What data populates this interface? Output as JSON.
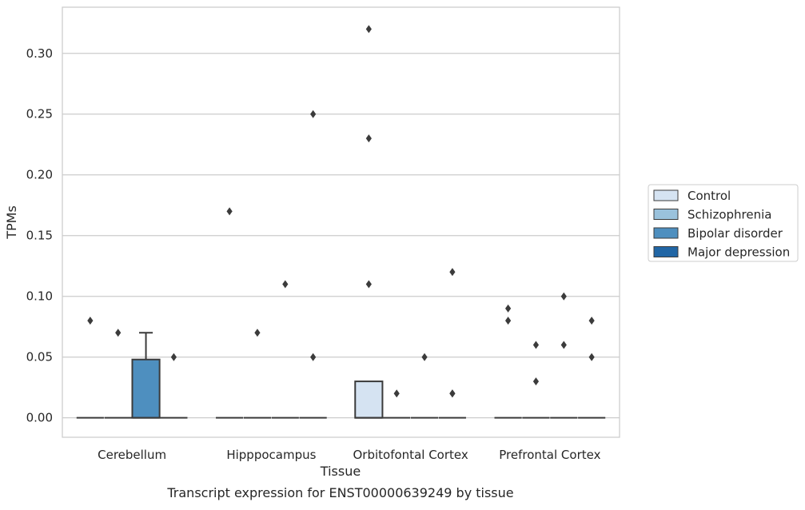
{
  "chart_data": {
    "type": "box",
    "title": "Transcript expression for ENST00000639249 by tissue",
    "xlabel": "Tissue",
    "ylabel": "TPMs",
    "ylim": [
      -0.016,
      0.338
    ],
    "yticks": [
      0.0,
      0.05,
      0.1,
      0.15,
      0.2,
      0.25,
      0.3
    ],
    "ytick_labels": [
      "0.00",
      "0.05",
      "0.10",
      "0.15",
      "0.20",
      "0.25",
      "0.30"
    ],
    "grid": "horizontal",
    "legend_position": "right",
    "categories": [
      "Cerebellum",
      "Hipppocampus",
      "Orbitofontal Cortex",
      "Prefrontal Cortex"
    ],
    "series": [
      {
        "name": "Control",
        "color": "#d5e3f2",
        "boxes": [
          {
            "q1": 0.0,
            "median": 0.0,
            "q3": 0.0,
            "whisker_low": 0.0,
            "whisker_high": 0.0,
            "outliers": [
              0.08
            ]
          },
          {
            "q1": 0.0,
            "median": 0.0,
            "q3": 0.0,
            "whisker_low": 0.0,
            "whisker_high": 0.0,
            "outliers": [
              0.17
            ]
          },
          {
            "q1": 0.0,
            "median": 0.0,
            "q3": 0.03,
            "whisker_low": 0.0,
            "whisker_high": 0.03,
            "outliers": [
              0.32,
              0.23,
              0.11
            ]
          },
          {
            "q1": 0.0,
            "median": 0.0,
            "q3": 0.0,
            "whisker_low": 0.0,
            "whisker_high": 0.0,
            "outliers": [
              0.09,
              0.08
            ]
          }
        ]
      },
      {
        "name": "Schizophrenia",
        "color": "#9ac2dc",
        "boxes": [
          {
            "q1": 0.0,
            "median": 0.0,
            "q3": 0.0,
            "whisker_low": 0.0,
            "whisker_high": 0.0,
            "outliers": [
              0.07
            ]
          },
          {
            "q1": 0.0,
            "median": 0.0,
            "q3": 0.0,
            "whisker_low": 0.0,
            "whisker_high": 0.0,
            "outliers": [
              0.07
            ]
          },
          {
            "q1": 0.0,
            "median": 0.0,
            "q3": 0.0,
            "whisker_low": 0.0,
            "whisker_high": 0.0,
            "outliers": [
              0.02
            ]
          },
          {
            "q1": 0.0,
            "median": 0.0,
            "q3": 0.0,
            "whisker_low": 0.0,
            "whisker_high": 0.0,
            "outliers": [
              0.06,
              0.03
            ]
          }
        ]
      },
      {
        "name": "Bipolar disorder",
        "color": "#4e8fbf",
        "boxes": [
          {
            "q1": 0.0,
            "median": 0.0,
            "q3": 0.048,
            "whisker_low": 0.0,
            "whisker_high": 0.07,
            "outliers": []
          },
          {
            "q1": 0.0,
            "median": 0.0,
            "q3": 0.0,
            "whisker_low": 0.0,
            "whisker_high": 0.0,
            "outliers": [
              0.11
            ]
          },
          {
            "q1": 0.0,
            "median": 0.0,
            "q3": 0.0,
            "whisker_low": 0.0,
            "whisker_high": 0.0,
            "outliers": [
              0.05
            ]
          },
          {
            "q1": 0.0,
            "median": 0.0,
            "q3": 0.0,
            "whisker_low": 0.0,
            "whisker_high": 0.0,
            "outliers": [
              0.1,
              0.06
            ]
          }
        ]
      },
      {
        "name": "Major depression",
        "color": "#2166a5",
        "boxes": [
          {
            "q1": 0.0,
            "median": 0.0,
            "q3": 0.0,
            "whisker_low": 0.0,
            "whisker_high": 0.0,
            "outliers": [
              0.05
            ]
          },
          {
            "q1": 0.0,
            "median": 0.0,
            "q3": 0.0,
            "whisker_low": 0.0,
            "whisker_high": 0.0,
            "outliers": [
              0.25,
              0.05
            ]
          },
          {
            "q1": 0.0,
            "median": 0.0,
            "q3": 0.0,
            "whisker_low": 0.0,
            "whisker_high": 0.0,
            "outliers": [
              0.12,
              0.02,
              0.02
            ]
          },
          {
            "q1": 0.0,
            "median": 0.0,
            "q3": 0.0,
            "whisker_low": 0.0,
            "whisker_high": 0.0,
            "outliers": [
              0.08,
              0.05
            ]
          }
        ]
      }
    ]
  }
}
